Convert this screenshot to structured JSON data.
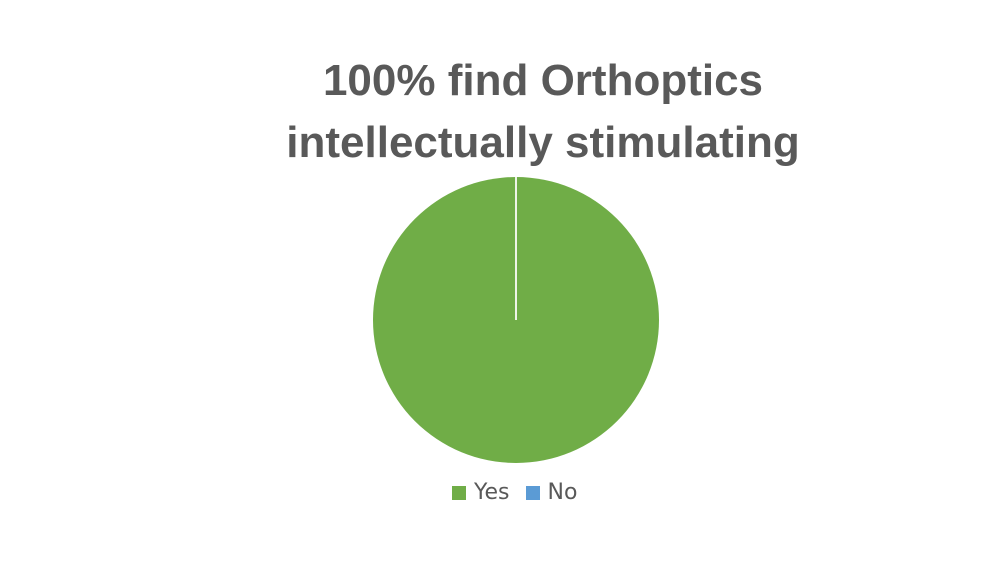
{
  "chart_data": {
    "type": "pie",
    "title_lines": [
      "100% find Orthoptics",
      "intellectually stimulating"
    ],
    "categories": [
      "Yes",
      "No"
    ],
    "values": [
      100,
      0
    ],
    "colors": [
      "#70AD47",
      "#5B9BD5"
    ],
    "legend_position": "bottom"
  }
}
